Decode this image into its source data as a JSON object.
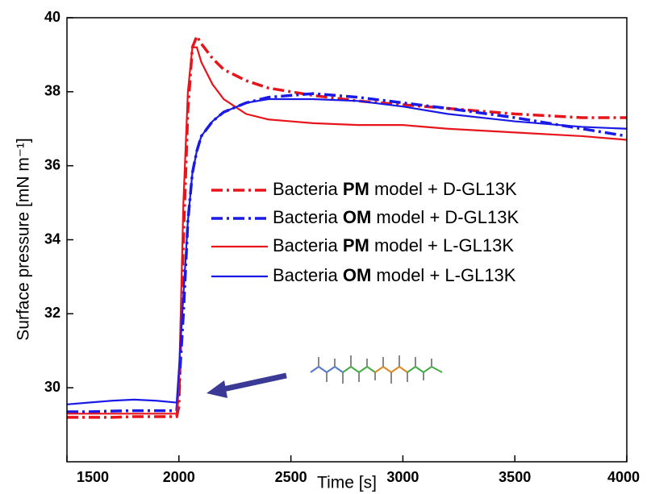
{
  "chart_data": {
    "type": "line",
    "x_label": "Time [s]",
    "y_label": "Surface pressure [mN m⁻¹]",
    "xlim": [
      1500,
      4000
    ],
    "xticks": [
      1500,
      2000,
      2500,
      3000,
      3500,
      4000
    ],
    "ylim": [
      28,
      40
    ],
    "yticks": [
      30,
      32,
      34,
      36,
      38,
      40
    ],
    "legend": "upper right",
    "x": [
      1500,
      1600,
      1700,
      1800,
      1900,
      1990,
      2000,
      2020,
      2040,
      2060,
      2080,
      2100,
      2150,
      2200,
      2300,
      2400,
      2500,
      2600,
      2800,
      3000,
      3200,
      3500,
      3800,
      4000
    ],
    "series": [
      {
        "name": "Bacteria PM model + D-GL13K",
        "color": "#e8141b",
        "style": "dashdot",
        "values": [
          29.2,
          29.2,
          29.2,
          29.22,
          29.22,
          29.22,
          29.5,
          34,
          37.5,
          39.2,
          39.5,
          39.3,
          38.9,
          38.6,
          38.3,
          38.1,
          38.0,
          37.9,
          37.75,
          37.65,
          37.55,
          37.4,
          37.3,
          37.3
        ]
      },
      {
        "name": "Bacteria OM model + D-GL13K",
        "color": "#1a1ae6",
        "style": "dashdot",
        "values": [
          29.35,
          29.35,
          29.37,
          29.38,
          29.38,
          29.38,
          30,
          32,
          34.5,
          35.8,
          36.4,
          36.8,
          37.2,
          37.45,
          37.7,
          37.85,
          37.9,
          37.95,
          37.85,
          37.7,
          37.55,
          37.3,
          37.0,
          36.8
        ]
      },
      {
        "name": "Bacteria PM model + L-GL13K",
        "color": "#e8141b",
        "style": "solid",
        "values": [
          29.3,
          29.3,
          29.3,
          29.3,
          29.3,
          29.3,
          30,
          35,
          38,
          39.2,
          39.2,
          38.8,
          38.2,
          37.8,
          37.4,
          37.25,
          37.2,
          37.15,
          37.1,
          37.1,
          37.0,
          36.9,
          36.8,
          36.7
        ]
      },
      {
        "name": "Bacteria OM model + L-GL13K",
        "color": "#1a1ae6",
        "style": "solid",
        "values": [
          29.55,
          29.6,
          29.65,
          29.68,
          29.65,
          29.6,
          30.5,
          32.5,
          34.5,
          35.8,
          36.4,
          36.8,
          37.2,
          37.45,
          37.7,
          37.8,
          37.8,
          37.8,
          37.75,
          37.6,
          37.4,
          37.2,
          37.05,
          37.0
        ]
      }
    ]
  }
}
